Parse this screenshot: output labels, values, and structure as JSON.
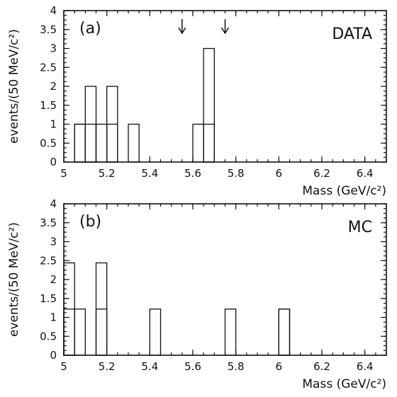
{
  "chart_data": [
    {
      "type": "bar",
      "panel_label": "(a)",
      "tag": "DATA",
      "xlabel": "Mass (GeV/c²)",
      "ylabel": "events/(50 MeV/c²)",
      "xlim": [
        5.0,
        6.5
      ],
      "ylim": [
        0,
        4
      ],
      "xticks": [
        5,
        5.2,
        5.4,
        5.6,
        5.8,
        6,
        6.2,
        6.4
      ],
      "xtick_labels": [
        "5",
        "5.2",
        "5.4",
        "5.6",
        "5.8",
        "6",
        "6.2",
        "6.4"
      ],
      "yticks": [
        0,
        0.5,
        1,
        1.5,
        2,
        2.5,
        3,
        3.5,
        4
      ],
      "ytick_labels": [
        "0",
        "0.5",
        "1",
        "1.5",
        "2",
        "2.5",
        "3",
        "3.5",
        "4"
      ],
      "grid": false,
      "bin_width": 0.05,
      "series": [
        {
          "style": "outline",
          "bin_starts": [
            5.05,
            5.1,
            5.15,
            5.2,
            5.3,
            5.6,
            5.65
          ],
          "values": [
            1,
            2,
            1,
            2,
            1,
            1,
            3
          ]
        },
        {
          "style": "hatched",
          "bin_starts": [
            5.05,
            5.1,
            5.2,
            5.65
          ],
          "values": [
            1,
            1,
            1,
            1
          ]
        }
      ],
      "annotations": [
        {
          "type": "arrow-down",
          "x": 5.55
        },
        {
          "type": "arrow-down",
          "x": 5.75
        }
      ]
    },
    {
      "type": "bar",
      "panel_label": "(b)",
      "tag": "MC",
      "xlabel": "Mass (GeV/c²)",
      "ylabel": "events/(50 MeV/c²)",
      "xlim": [
        5.0,
        6.5
      ],
      "ylim": [
        0,
        4
      ],
      "xticks": [
        5,
        5.2,
        5.4,
        5.6,
        5.8,
        6,
        6.2,
        6.4
      ],
      "xtick_labels": [
        "5",
        "5.2",
        "5.4",
        "5.6",
        "5.8",
        "6",
        "6.2",
        "6.4"
      ],
      "yticks": [
        0,
        0.5,
        1,
        1.5,
        2,
        2.5,
        3,
        3.5,
        4
      ],
      "ytick_labels": [
        "0",
        "0.5",
        "1",
        "1.5",
        "2",
        "2.5",
        "3",
        "3.5",
        "4"
      ],
      "grid": false,
      "bin_width": 0.05,
      "series": [
        {
          "style": "outline",
          "bin_starts": [
            5.0,
            5.05,
            5.15,
            5.4,
            5.75,
            6.0
          ],
          "values": [
            2.44,
            1.22,
            2.44,
            1.22,
            1.22,
            1.22
          ]
        },
        {
          "style": "hatched",
          "bin_starts": [
            5.0,
            5.15,
            6.0
          ],
          "values": [
            1.22,
            1.22,
            1.22
          ]
        }
      ],
      "annotations": []
    }
  ]
}
